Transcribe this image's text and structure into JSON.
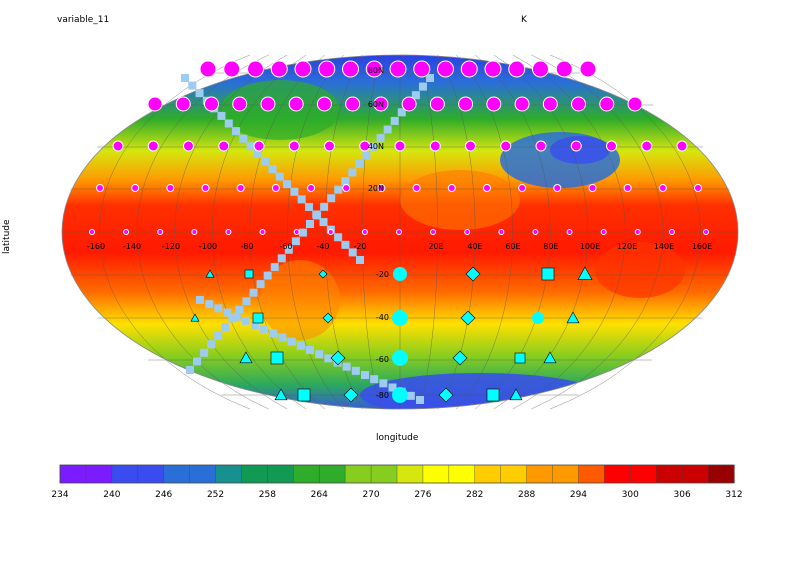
{
  "title": "variable_11",
  "units": "K",
  "xlabel": "longitude",
  "ylabel": "latitude",
  "map": {
    "projection": "Robinson",
    "lon_ticks": [
      "-160",
      "-140",
      "-120",
      "-100",
      "-80",
      "-60",
      "-40",
      "-20",
      "20E",
      "40E",
      "60E",
      "80E",
      "100E",
      "120E",
      "140E",
      "160E"
    ],
    "lat_ticks_north": [
      "80N",
      "60N",
      "40N",
      "20N"
    ],
    "lat_ticks_south": [
      "-20",
      "-40",
      "-60",
      "-80"
    ],
    "marker_colors": {
      "north": "#ff00ff",
      "south": "#00ffff"
    },
    "track_color": "#9ecbf0"
  },
  "colorbar": {
    "tick_labels": [
      "234",
      "240",
      "246",
      "252",
      "258",
      "264",
      "270",
      "276",
      "282",
      "288",
      "294",
      "300",
      "306",
      "312"
    ],
    "min": 234,
    "max": 312,
    "colors": [
      "#7a1cff",
      "#3a4cf0",
      "#2a6fd8",
      "#17908f",
      "#129a55",
      "#2eac2a",
      "#86cd1f",
      "#d6e60f",
      "#ffff00",
      "#ffcc00",
      "#ff9900",
      "#ff5a00",
      "#ff0000",
      "#cc0000",
      "#990000"
    ]
  }
}
